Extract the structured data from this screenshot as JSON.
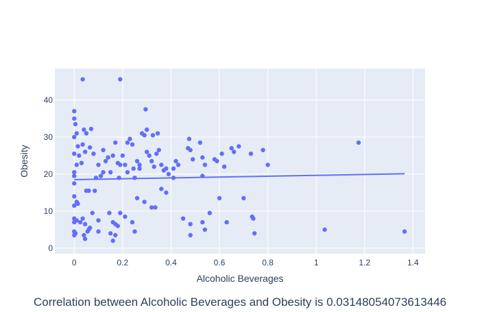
{
  "chart_data": {
    "type": "scatter",
    "title": "",
    "xlabel": "Alcoholic Beverages",
    "ylabel": "Obesity",
    "caption": "Correlation between Alcoholic Beverages and Obesity is 0.03148054073613446",
    "xlim": [
      -0.08,
      1.45
    ],
    "ylim": [
      -1.5,
      48.5
    ],
    "x_ticks": [
      0,
      0.2,
      0.4,
      0.6,
      0.8,
      1,
      1.2,
      1.4
    ],
    "x_tick_labels": [
      "0",
      "0.2",
      "0.4",
      "0.6",
      "0.8",
      "1",
      "1.2",
      "1.4"
    ],
    "y_ticks": [
      0,
      10,
      20,
      30,
      40
    ],
    "y_tick_labels": [
      "0",
      "10",
      "20",
      "30",
      "40"
    ],
    "grid": true,
    "legend": "none",
    "colors": {
      "marker": "#636efa",
      "trendline": "#636efa",
      "plot_bg": "#e5ecf6",
      "grid": "#ffffff",
      "text": "#2a3f5f"
    },
    "series": [
      {
        "type": "scatter",
        "points": [
          [
            0.035,
            45.6
          ],
          [
            0.19,
            45.6
          ],
          [
            0.0,
            37.0
          ],
          [
            0.0,
            35.0
          ],
          [
            0.005,
            33.5
          ],
          [
            0.04,
            32.0
          ],
          [
            0.07,
            32.2
          ],
          [
            0.0,
            30.0
          ],
          [
            0.01,
            31.0
          ],
          [
            0.05,
            31.0
          ],
          [
            0.0,
            25.5
          ],
          [
            0.015,
            27.5
          ],
          [
            0.035,
            28.0
          ],
          [
            0.02,
            25.0
          ],
          [
            0.03,
            23.0
          ],
          [
            0.0,
            20.5
          ],
          [
            0.0,
            19.5
          ],
          [
            0.0,
            17.5
          ],
          [
            0.01,
            22.5
          ],
          [
            0.045,
            26.0
          ],
          [
            0.065,
            27.2
          ],
          [
            0.08,
            25.5
          ],
          [
            0.1,
            22.5
          ],
          [
            0.12,
            26.5
          ],
          [
            0.14,
            24.5
          ],
          [
            0.16,
            25.0
          ],
          [
            0.17,
            28.5
          ],
          [
            0.18,
            23.0
          ],
          [
            0.19,
            22.5
          ],
          [
            0.2,
            25.0
          ],
          [
            0.21,
            22.5
          ],
          [
            0.22,
            28.5
          ],
          [
            0.23,
            29.5
          ],
          [
            0.24,
            28.0
          ],
          [
            0.26,
            23.5
          ],
          [
            0.27,
            22.5
          ],
          [
            0.28,
            31.0
          ],
          [
            0.29,
            30.5
          ],
          [
            0.3,
            26.0
          ],
          [
            0.31,
            25.0
          ],
          [
            0.32,
            23.5
          ],
          [
            0.33,
            22.0
          ],
          [
            0.34,
            25.5
          ],
          [
            0.35,
            26.5
          ],
          [
            0.36,
            22.5
          ],
          [
            0.37,
            21.0
          ],
          [
            0.38,
            21.5
          ],
          [
            0.39,
            20.0
          ],
          [
            0.41,
            19.0
          ],
          [
            0.42,
            23.5
          ],
          [
            0.43,
            22.5
          ],
          [
            0.47,
            27.0
          ],
          [
            0.475,
            29.5
          ],
          [
            0.48,
            26.5
          ],
          [
            0.49,
            24.0
          ],
          [
            0.52,
            28.5
          ],
          [
            0.53,
            24.5
          ],
          [
            0.54,
            22.5
          ],
          [
            0.58,
            24.0
          ],
          [
            0.59,
            23.5
          ],
          [
            0.61,
            25.5
          ],
          [
            0.62,
            22.0
          ],
          [
            0.65,
            27.0
          ],
          [
            0.66,
            26.0
          ],
          [
            0.68,
            27.5
          ],
          [
            0.73,
            25.5
          ],
          [
            0.78,
            26.5
          ],
          [
            0.8,
            22.5
          ],
          [
            0.295,
            37.5
          ],
          [
            0.3,
            32.0
          ],
          [
            0.325,
            30.5
          ],
          [
            0.345,
            31.0
          ],
          [
            0.0,
            14.0
          ],
          [
            0.0,
            11.5
          ],
          [
            0.01,
            12.5
          ],
          [
            0.015,
            12.0
          ],
          [
            0.05,
            15.5
          ],
          [
            0.06,
            15.5
          ],
          [
            0.085,
            15.5
          ],
          [
            0.26,
            13.5
          ],
          [
            0.29,
            12.5
          ],
          [
            0.32,
            11.0
          ],
          [
            0.335,
            11.0
          ],
          [
            0.36,
            16.0
          ],
          [
            0.38,
            15.0
          ],
          [
            0.41,
            21.5
          ],
          [
            0.0,
            8.0
          ],
          [
            0.0,
            7.0
          ],
          [
            0.01,
            7.5
          ],
          [
            0.025,
            7.0
          ],
          [
            0.035,
            8.0
          ],
          [
            0.045,
            6.5
          ],
          [
            0.06,
            5.0
          ],
          [
            0.075,
            9.5
          ],
          [
            0.1,
            7.5
          ],
          [
            0.145,
            9.5
          ],
          [
            0.16,
            7.0
          ],
          [
            0.17,
            6.5
          ],
          [
            0.18,
            6.0
          ],
          [
            0.19,
            9.5
          ],
          [
            0.21,
            8.5
          ],
          [
            0.24,
            7.0
          ],
          [
            0.0,
            4.5
          ],
          [
            0.005,
            4.0
          ],
          [
            0.0,
            3.5
          ],
          [
            0.04,
            3.5
          ],
          [
            0.045,
            2.5
          ],
          [
            0.055,
            4.5
          ],
          [
            0.065,
            5.5
          ],
          [
            0.1,
            4.5
          ],
          [
            0.15,
            4.0
          ],
          [
            0.16,
            2.0
          ],
          [
            0.17,
            3.5
          ],
          [
            0.25,
            4.5
          ],
          [
            0.45,
            8.0
          ],
          [
            0.48,
            6.5
          ],
          [
            0.48,
            3.5
          ],
          [
            0.53,
            7.0
          ],
          [
            0.54,
            5.0
          ],
          [
            0.56,
            9.5
          ],
          [
            0.6,
            13.5
          ],
          [
            0.63,
            7.0
          ],
          [
            0.7,
            13.5
          ],
          [
            0.735,
            8.5
          ],
          [
            0.74,
            8.0
          ],
          [
            0.745,
            4.0
          ],
          [
            1.035,
            5.0
          ],
          [
            1.175,
            28.5
          ],
          [
            1.365,
            4.5
          ],
          [
            0.53,
            19.5
          ],
          [
            0.09,
            19.0
          ],
          [
            0.11,
            19.5
          ],
          [
            0.15,
            20.5
          ],
          [
            0.185,
            19.0
          ],
          [
            0.22,
            20.5
          ],
          [
            0.245,
            21.5
          ],
          [
            0.12,
            20.5
          ],
          [
            0.13,
            23.5
          ],
          [
            0.25,
            19.0
          ],
          [
            0.27,
            21.5
          ]
        ]
      },
      {
        "type": "trendline",
        "points": [
          [
            0.0,
            18.5
          ],
          [
            1.365,
            20.1
          ]
        ]
      }
    ]
  }
}
